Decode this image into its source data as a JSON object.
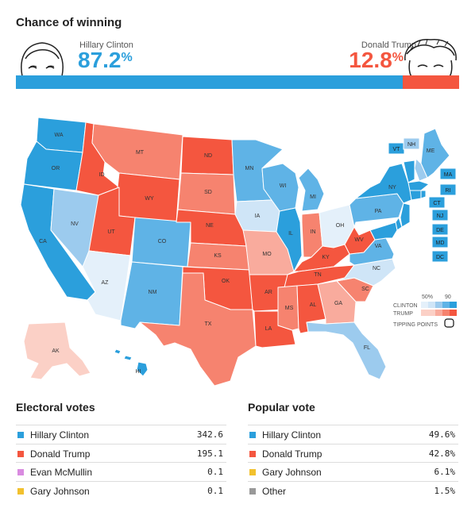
{
  "header": {
    "title": "Chance of winning"
  },
  "candidates": {
    "clinton": {
      "name": "Hillary Clinton",
      "value": "87.2",
      "symbol": "%",
      "color": "#2b9fdc",
      "chance": 0.872
    },
    "trump": {
      "name": "Donald Trump",
      "value": "12.8",
      "symbol": "%",
      "color": "#f4563f",
      "chance": 0.128
    }
  },
  "legend": {
    "clinton_label": "CLINTON",
    "trump_label": "TRUMP",
    "tick_50": "50%",
    "tick_90": "90",
    "tipping_label": "TIPPING POINTS"
  },
  "colors": {
    "dem_strong": "#2b9fdc",
    "dem_medium": "#5fb3e6",
    "dem_light": "#9ccbee",
    "dem_lean": "#cfe5f7",
    "dem_faint": "#e4f0fa",
    "rep_strong": "#f4563f",
    "rep_medium": "#f6836f",
    "rep_light": "#f9ab9d",
    "rep_lean": "#fbd0c6"
  },
  "map": {
    "states": [
      {
        "abbr": "WA",
        "shade": "dem_strong"
      },
      {
        "abbr": "OR",
        "shade": "dem_strong"
      },
      {
        "abbr": "CA",
        "shade": "dem_strong"
      },
      {
        "abbr": "NV",
        "shade": "dem_light"
      },
      {
        "abbr": "ID",
        "shade": "rep_strong"
      },
      {
        "abbr": "MT",
        "shade": "rep_medium"
      },
      {
        "abbr": "WY",
        "shade": "rep_strong"
      },
      {
        "abbr": "UT",
        "shade": "rep_strong"
      },
      {
        "abbr": "AZ",
        "shade": "dem_faint"
      },
      {
        "abbr": "CO",
        "shade": "dem_medium"
      },
      {
        "abbr": "NM",
        "shade": "dem_medium"
      },
      {
        "abbr": "ND",
        "shade": "rep_strong"
      },
      {
        "abbr": "SD",
        "shade": "rep_medium"
      },
      {
        "abbr": "NE",
        "shade": "rep_strong"
      },
      {
        "abbr": "KS",
        "shade": "rep_medium"
      },
      {
        "abbr": "OK",
        "shade": "rep_strong"
      },
      {
        "abbr": "TX",
        "shade": "rep_medium"
      },
      {
        "abbr": "MN",
        "shade": "dem_medium"
      },
      {
        "abbr": "IA",
        "shade": "dem_lean"
      },
      {
        "abbr": "MO",
        "shade": "rep_light"
      },
      {
        "abbr": "AR",
        "shade": "rep_strong"
      },
      {
        "abbr": "LA",
        "shade": "rep_strong"
      },
      {
        "abbr": "WI",
        "shade": "dem_medium"
      },
      {
        "abbr": "IL",
        "shade": "dem_strong"
      },
      {
        "abbr": "MI",
        "shade": "dem_medium"
      },
      {
        "abbr": "IN",
        "shade": "rep_medium"
      },
      {
        "abbr": "OH",
        "shade": "dem_faint"
      },
      {
        "abbr": "KY",
        "shade": "rep_strong"
      },
      {
        "abbr": "TN",
        "shade": "rep_strong"
      },
      {
        "abbr": "MS",
        "shade": "rep_medium"
      },
      {
        "abbr": "AL",
        "shade": "rep_strong"
      },
      {
        "abbr": "GA",
        "shade": "rep_light"
      },
      {
        "abbr": "FL",
        "shade": "dem_light"
      },
      {
        "abbr": "SC",
        "shade": "rep_medium"
      },
      {
        "abbr": "NC",
        "shade": "dem_lean"
      },
      {
        "abbr": "VA",
        "shade": "dem_medium"
      },
      {
        "abbr": "WV",
        "shade": "rep_strong"
      },
      {
        "abbr": "PA",
        "shade": "dem_medium"
      },
      {
        "abbr": "NY",
        "shade": "dem_strong"
      },
      {
        "abbr": "ME",
        "shade": "dem_medium"
      },
      {
        "abbr": "AK",
        "shade": "rep_lean"
      },
      {
        "abbr": "HI",
        "shade": "dem_strong"
      }
    ],
    "small_states": [
      {
        "abbr": "VT",
        "shade": "dem_strong"
      },
      {
        "abbr": "NH",
        "shade": "dem_light"
      },
      {
        "abbr": "MA",
        "shade": "dem_strong"
      },
      {
        "abbr": "RI",
        "shade": "dem_strong"
      },
      {
        "abbr": "CT",
        "shade": "dem_strong"
      },
      {
        "abbr": "NJ",
        "shade": "dem_strong"
      },
      {
        "abbr": "DE",
        "shade": "dem_strong"
      },
      {
        "abbr": "MD",
        "shade": "dem_strong"
      },
      {
        "abbr": "DC",
        "shade": "dem_strong"
      }
    ]
  },
  "electoral_votes": {
    "title": "Electoral votes",
    "rows": [
      {
        "name": "Hillary Clinton",
        "value": "342.6",
        "color": "#2b9fdc"
      },
      {
        "name": "Donald Trump",
        "value": "195.1",
        "color": "#f4563f"
      },
      {
        "name": "Evan McMullin",
        "value": "0.1",
        "color": "#d98be0"
      },
      {
        "name": "Gary Johnson",
        "value": "0.1",
        "color": "#f2c12e"
      }
    ]
  },
  "popular_vote": {
    "title": "Popular vote",
    "rows": [
      {
        "name": "Hillary Clinton",
        "value": "49.6%",
        "color": "#2b9fdc"
      },
      {
        "name": "Donald Trump",
        "value": "42.8%",
        "color": "#f4563f"
      },
      {
        "name": "Gary Johnson",
        "value": "6.1%",
        "color": "#f2c12e"
      },
      {
        "name": "Other",
        "value": "1.5%",
        "color": "#999999"
      }
    ]
  }
}
